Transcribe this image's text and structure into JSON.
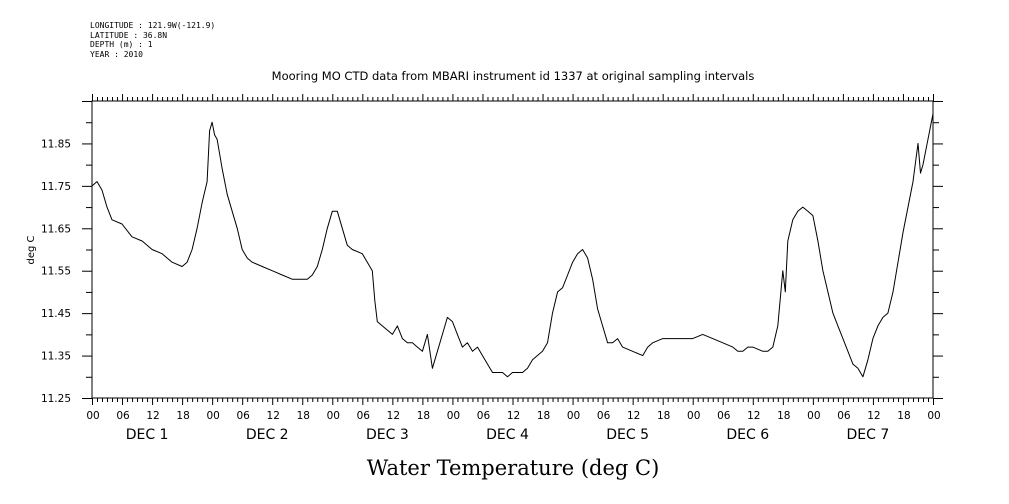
{
  "header": {
    "longitude": "LONGITUDE : 121.9W(-121.9)",
    "latitude": "LATITUDE : 36.8N",
    "depth": "DEPTH (m) : 1",
    "year": "YEAR : 2010"
  },
  "chart_data": {
    "type": "line",
    "title": "Mooring MO CTD data from MBARI instrument id 1337 at original sampling intervals",
    "xlabel": "Water Temperature (deg C)",
    "ylabel": "deg C",
    "ylim": [
      11.25,
      11.95
    ],
    "xlim": [
      0,
      168
    ],
    "y_tick_labels": [
      "11.25",
      "11.35",
      "11.45",
      "11.55",
      "11.65",
      "11.75",
      "11.85"
    ],
    "x_tick_labels": [
      "00",
      "06",
      "12",
      "18",
      "00",
      "06",
      "12",
      "18",
      "00",
      "06",
      "12",
      "18",
      "00",
      "06",
      "12",
      "18",
      "00",
      "06",
      "12",
      "18",
      "00",
      "06",
      "12",
      "18",
      "00",
      "06",
      "12",
      "18",
      "00"
    ],
    "day_labels": [
      "DEC 1",
      "DEC 2",
      "DEC 3",
      "DEC 4",
      "DEC 5",
      "DEC 6",
      "DEC 7"
    ],
    "grid": false,
    "series": [
      {
        "x_unit": "hours since DEC 1 00:00",
        "points": [
          [
            0,
            11.75
          ],
          [
            1,
            11.76
          ],
          [
            2,
            11.74
          ],
          [
            3,
            11.7
          ],
          [
            4,
            11.67
          ],
          [
            6,
            11.66
          ],
          [
            8,
            11.63
          ],
          [
            10,
            11.62
          ],
          [
            12,
            11.6
          ],
          [
            14,
            11.59
          ],
          [
            15,
            11.58
          ],
          [
            16,
            11.57
          ],
          [
            18,
            11.56
          ],
          [
            19,
            11.57
          ],
          [
            20,
            11.6
          ],
          [
            21,
            11.65
          ],
          [
            22,
            11.71
          ],
          [
            23,
            11.76
          ],
          [
            23.5,
            11.88
          ],
          [
            24,
            11.9
          ],
          [
            24.5,
            11.87
          ],
          [
            25,
            11.86
          ],
          [
            26,
            11.79
          ],
          [
            27,
            11.73
          ],
          [
            28,
            11.69
          ],
          [
            29,
            11.65
          ],
          [
            30,
            11.6
          ],
          [
            31,
            11.58
          ],
          [
            32,
            11.57
          ],
          [
            34,
            11.56
          ],
          [
            36,
            11.55
          ],
          [
            38,
            11.54
          ],
          [
            40,
            11.53
          ],
          [
            42,
            11.53
          ],
          [
            43,
            11.53
          ],
          [
            44,
            11.54
          ],
          [
            45,
            11.56
          ],
          [
            46,
            11.6
          ],
          [
            47,
            11.65
          ],
          [
            48,
            11.69
          ],
          [
            49,
            11.69
          ],
          [
            50,
            11.65
          ],
          [
            51,
            11.61
          ],
          [
            52,
            11.6
          ],
          [
            54,
            11.59
          ],
          [
            55,
            11.57
          ],
          [
            56,
            11.55
          ],
          [
            56.5,
            11.48
          ],
          [
            57,
            11.43
          ],
          [
            58,
            11.42
          ],
          [
            59,
            11.41
          ],
          [
            60,
            11.4
          ],
          [
            61,
            11.42
          ],
          [
            62,
            11.39
          ],
          [
            63,
            11.38
          ],
          [
            64,
            11.38
          ],
          [
            65,
            11.37
          ],
          [
            66,
            11.36
          ],
          [
            67,
            11.4
          ],
          [
            68,
            11.32
          ],
          [
            69,
            11.36
          ],
          [
            70,
            11.4
          ],
          [
            71,
            11.44
          ],
          [
            72,
            11.43
          ],
          [
            73,
            11.4
          ],
          [
            74,
            11.37
          ],
          [
            75,
            11.38
          ],
          [
            76,
            11.36
          ],
          [
            77,
            11.37
          ],
          [
            78,
            11.35
          ],
          [
            79,
            11.33
          ],
          [
            80,
            11.31
          ],
          [
            81,
            11.31
          ],
          [
            82,
            11.31
          ],
          [
            83,
            11.3
          ],
          [
            84,
            11.31
          ],
          [
            86,
            11.31
          ],
          [
            87,
            11.32
          ],
          [
            88,
            11.34
          ],
          [
            90,
            11.36
          ],
          [
            91,
            11.38
          ],
          [
            92,
            11.45
          ],
          [
            93,
            11.5
          ],
          [
            94,
            11.51
          ],
          [
            95,
            11.54
          ],
          [
            96,
            11.57
          ],
          [
            97,
            11.59
          ],
          [
            98,
            11.6
          ],
          [
            99,
            11.58
          ],
          [
            100,
            11.53
          ],
          [
            101,
            11.46
          ],
          [
            102,
            11.42
          ],
          [
            103,
            11.38
          ],
          [
            104,
            11.38
          ],
          [
            105,
            11.39
          ],
          [
            106,
            11.37
          ],
          [
            108,
            11.36
          ],
          [
            110,
            11.35
          ],
          [
            111,
            11.37
          ],
          [
            112,
            11.38
          ],
          [
            114,
            11.39
          ],
          [
            116,
            11.39
          ],
          [
            118,
            11.39
          ],
          [
            120,
            11.39
          ],
          [
            122,
            11.4
          ],
          [
            124,
            11.39
          ],
          [
            126,
            11.38
          ],
          [
            128,
            11.37
          ],
          [
            129,
            11.36
          ],
          [
            130,
            11.36
          ],
          [
            131,
            11.37
          ],
          [
            132,
            11.37
          ],
          [
            134,
            11.36
          ],
          [
            135,
            11.36
          ],
          [
            136,
            11.37
          ],
          [
            137,
            11.42
          ],
          [
            138,
            11.55
          ],
          [
            138.5,
            11.5
          ],
          [
            139,
            11.62
          ],
          [
            140,
            11.67
          ],
          [
            141,
            11.69
          ],
          [
            142,
            11.7
          ],
          [
            143,
            11.69
          ],
          [
            144,
            11.68
          ],
          [
            145,
            11.62
          ],
          [
            146,
            11.55
          ],
          [
            147,
            11.5
          ],
          [
            148,
            11.45
          ],
          [
            149,
            11.42
          ],
          [
            150,
            11.39
          ],
          [
            151,
            11.36
          ],
          [
            152,
            11.33
          ],
          [
            153,
            11.32
          ],
          [
            154,
            11.3
          ],
          [
            155,
            11.34
          ],
          [
            156,
            11.39
          ],
          [
            157,
            11.42
          ],
          [
            158,
            11.44
          ],
          [
            159,
            11.45
          ],
          [
            160,
            11.5
          ],
          [
            161,
            11.57
          ],
          [
            162,
            11.64
          ],
          [
            163,
            11.7
          ],
          [
            164,
            11.76
          ],
          [
            165,
            11.85
          ],
          [
            165.5,
            11.78
          ],
          [
            166,
            11.8
          ],
          [
            167,
            11.86
          ],
          [
            168,
            11.92
          ]
        ]
      }
    ]
  }
}
